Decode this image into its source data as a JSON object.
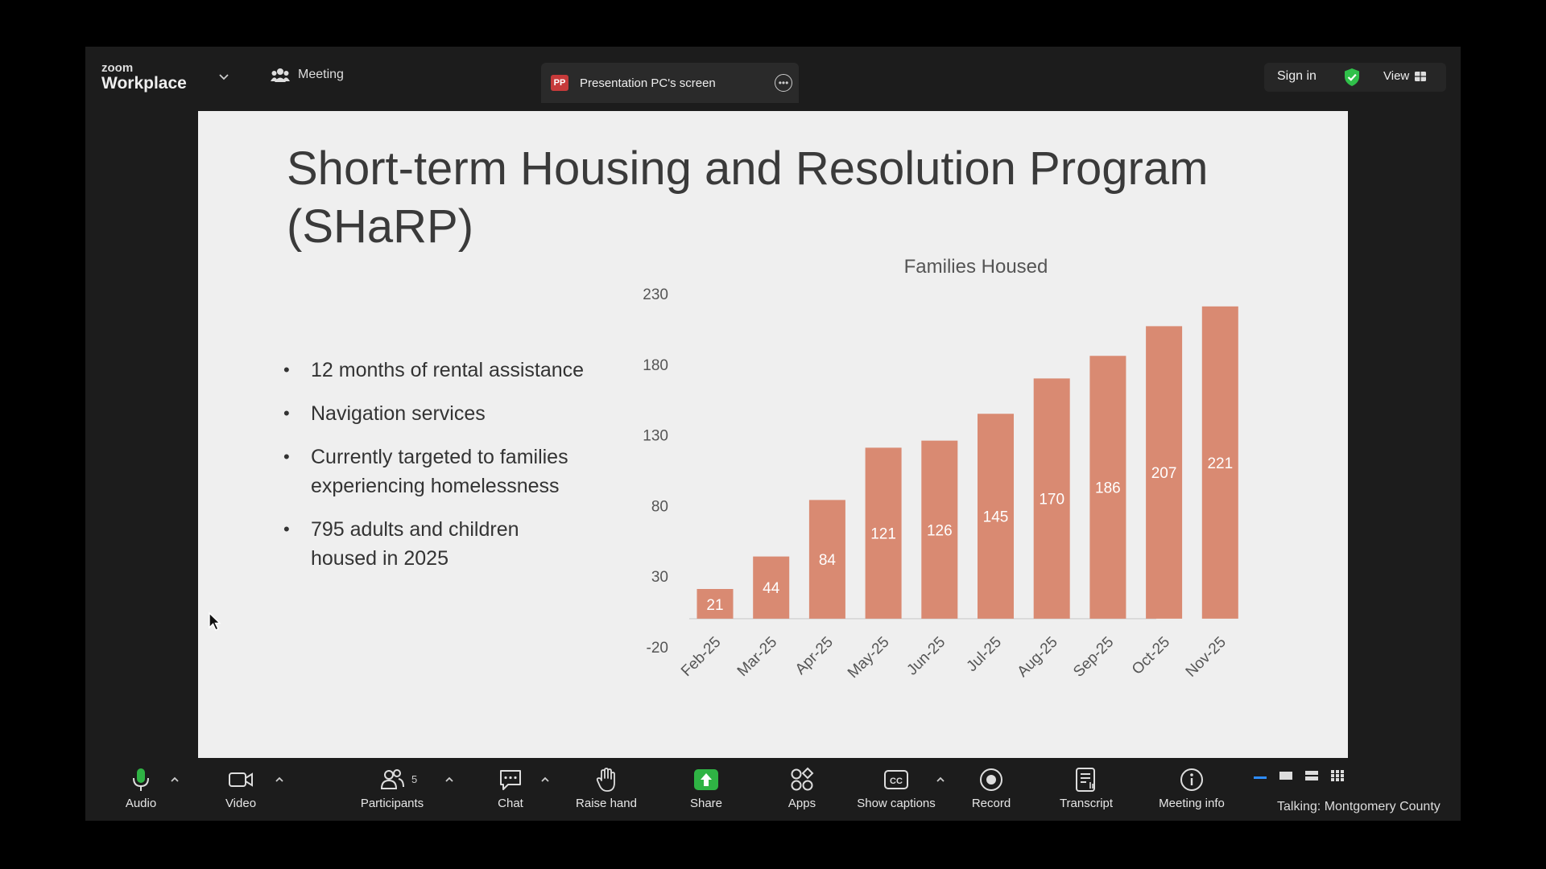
{
  "app": {
    "brand_small": "zoom",
    "brand_big": "Workplace",
    "meeting_label": "Meeting",
    "share_tab_icon_text": "PP",
    "share_tab_label": "Presentation PC's screen",
    "sign_in": "Sign in",
    "view_label": "View"
  },
  "slide": {
    "title": "Short-term Housing and Resolution Program (SHaRP)",
    "bullets": [
      "12 months of rental assistance",
      "Navigation services",
      "Currently targeted to families experiencing homelessness",
      "795 adults and children housed in 2025"
    ]
  },
  "chart_data": {
    "type": "bar",
    "title": "Families Housed",
    "categories": [
      "Feb-25",
      "Mar-25",
      "Apr-25",
      "May-25",
      "Jun-25",
      "Jul-25",
      "Aug-25",
      "Sep-25",
      "Oct-25",
      "Nov-25"
    ],
    "values": [
      21,
      44,
      84,
      121,
      126,
      145,
      170,
      186,
      207,
      221
    ],
    "ylim": [
      -20,
      230
    ],
    "yticks": [
      230,
      180,
      130,
      80,
      30,
      -20
    ],
    "xlabel": "",
    "ylabel": "",
    "bar_color": "#d98a72",
    "grid": false
  },
  "toolbar": {
    "audio": "Audio",
    "video": "Video",
    "participants": "Participants",
    "participants_count": "5",
    "chat": "Chat",
    "raise_hand": "Raise hand",
    "share": "Share",
    "apps": "Apps",
    "show_captions": "Show captions",
    "record": "Record",
    "transcript": "Transcript",
    "meeting_info": "Meeting info",
    "talking": "Talking:  Montgomery  County"
  },
  "colors": {
    "share_green": "#2fb344",
    "shield_green": "#30c04a",
    "accent_blue": "#2d8cff"
  }
}
